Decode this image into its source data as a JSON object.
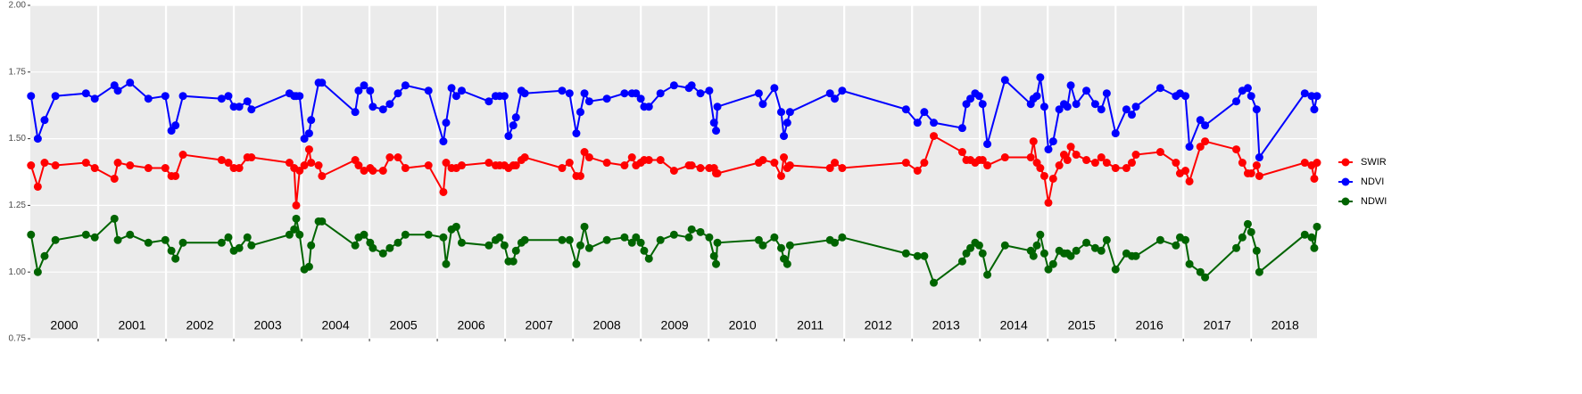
{
  "chart_data": {
    "type": "line",
    "x": [
      2000.01,
      2000.11,
      2000.21,
      2000.37,
      2000.82,
      2000.95,
      2001.24,
      2001.29,
      2001.47,
      2001.74,
      2001.99,
      2002.08,
      2002.14,
      2002.25,
      2002.82,
      2002.92,
      2003.0,
      2003.08,
      2003.2,
      2003.26,
      2003.82,
      2003.89,
      2003.92,
      2003.97,
      2004.04,
      2004.11,
      2004.14,
      2004.25,
      2004.3,
      2004.79,
      2004.84,
      2004.92,
      2005.01,
      2005.05,
      2005.2,
      2005.3,
      2005.42,
      2005.53,
      2005.87,
      2006.09,
      2006.13,
      2006.21,
      2006.28,
      2006.36,
      2006.76,
      2006.86,
      2006.92,
      2006.99,
      2007.05,
      2007.12,
      2007.16,
      2007.24,
      2007.29,
      2007.84,
      2007.95,
      2008.05,
      2008.11,
      2008.17,
      2008.24,
      2008.5,
      2008.76,
      2008.87,
      2008.93,
      2009.0,
      2009.05,
      2009.12,
      2009.29,
      2009.49,
      2009.71,
      2009.75,
      2009.88,
      2010.01,
      2010.08,
      2010.11,
      2010.13,
      2010.74,
      2010.8,
      2010.97,
      2011.07,
      2011.11,
      2011.16,
      2011.2,
      2011.79,
      2011.86,
      2011.97,
      2012.91,
      2013.08,
      2013.18,
      2013.32,
      2013.74,
      2013.8,
      2013.86,
      2013.93,
      2013.99,
      2014.04,
      2014.11,
      2014.37,
      2014.75,
      2014.79,
      2014.84,
      2014.89,
      2014.95,
      2015.01,
      2015.08,
      2015.17,
      2015.24,
      2015.29,
      2015.34,
      2015.42,
      2015.57,
      2015.7,
      2015.79,
      2015.87,
      2016.0,
      2016.16,
      2016.24,
      2016.3,
      2016.66,
      2016.89,
      2016.95,
      2017.03,
      2017.09,
      2017.25,
      2017.32,
      2017.78,
      2017.87,
      2017.95,
      2018.0,
      2018.08,
      2018.12,
      2018.79,
      2018.89,
      2018.93,
      2018.97
    ],
    "series": [
      {
        "name": "SWIR",
        "color": "#ff0000",
        "values": [
          1.4,
          1.32,
          1.41,
          1.4,
          1.41,
          1.39,
          1.35,
          1.41,
          1.4,
          1.39,
          1.39,
          1.36,
          1.36,
          1.44,
          1.42,
          1.41,
          1.39,
          1.39,
          1.43,
          1.43,
          1.41,
          1.39,
          1.25,
          1.38,
          1.4,
          1.46,
          1.41,
          1.4,
          1.36,
          1.42,
          1.4,
          1.38,
          1.39,
          1.38,
          1.38,
          1.43,
          1.43,
          1.39,
          1.4,
          1.3,
          1.41,
          1.39,
          1.39,
          1.4,
          1.41,
          1.4,
          1.4,
          1.4,
          1.39,
          1.4,
          1.4,
          1.42,
          1.43,
          1.39,
          1.41,
          1.36,
          1.36,
          1.45,
          1.43,
          1.41,
          1.4,
          1.43,
          1.4,
          1.41,
          1.42,
          1.42,
          1.42,
          1.38,
          1.4,
          1.4,
          1.39,
          1.39,
          1.39,
          1.37,
          1.37,
          1.41,
          1.42,
          1.41,
          1.36,
          1.43,
          1.39,
          1.4,
          1.39,
          1.41,
          1.39,
          1.41,
          1.38,
          1.41,
          1.51,
          1.45,
          1.42,
          1.42,
          1.41,
          1.42,
          1.42,
          1.4,
          1.43,
          1.43,
          1.49,
          1.41,
          1.39,
          1.36,
          1.26,
          1.35,
          1.4,
          1.44,
          1.42,
          1.47,
          1.44,
          1.42,
          1.41,
          1.43,
          1.41,
          1.39,
          1.39,
          1.41,
          1.44,
          1.45,
          1.41,
          1.37,
          1.38,
          1.34,
          1.47,
          1.49,
          1.46,
          1.41,
          1.37,
          1.37,
          1.4,
          1.36,
          1.41,
          1.4,
          1.35,
          1.41
        ]
      },
      {
        "name": "NDVI",
        "color": "#0000ff",
        "values": [
          1.66,
          1.5,
          1.57,
          1.66,
          1.67,
          1.65,
          1.7,
          1.68,
          1.71,
          1.65,
          1.66,
          1.53,
          1.55,
          1.66,
          1.65,
          1.66,
          1.62,
          1.62,
          1.64,
          1.61,
          1.67,
          1.66,
          1.66,
          1.66,
          1.5,
          1.52,
          1.57,
          1.71,
          1.71,
          1.6,
          1.68,
          1.7,
          1.68,
          1.62,
          1.61,
          1.63,
          1.67,
          1.7,
          1.68,
          1.49,
          1.56,
          1.69,
          1.66,
          1.68,
          1.64,
          1.66,
          1.66,
          1.66,
          1.51,
          1.55,
          1.58,
          1.68,
          1.67,
          1.68,
          1.67,
          1.52,
          1.6,
          1.67,
          1.64,
          1.65,
          1.67,
          1.67,
          1.67,
          1.65,
          1.62,
          1.62,
          1.67,
          1.7,
          1.69,
          1.7,
          1.67,
          1.68,
          1.56,
          1.53,
          1.62,
          1.67,
          1.63,
          1.69,
          1.6,
          1.51,
          1.56,
          1.6,
          1.67,
          1.65,
          1.68,
          1.61,
          1.56,
          1.6,
          1.56,
          1.54,
          1.63,
          1.65,
          1.67,
          1.66,
          1.63,
          1.48,
          1.72,
          1.63,
          1.65,
          1.66,
          1.73,
          1.62,
          1.46,
          1.49,
          1.61,
          1.63,
          1.62,
          1.7,
          1.63,
          1.68,
          1.63,
          1.61,
          1.67,
          1.52,
          1.61,
          1.59,
          1.62,
          1.69,
          1.66,
          1.67,
          1.66,
          1.47,
          1.57,
          1.55,
          1.64,
          1.68,
          1.69,
          1.66,
          1.61,
          1.43,
          1.67,
          1.66,
          1.61,
          1.66
        ]
      },
      {
        "name": "NDWI",
        "color": "#006400",
        "values": [
          1.14,
          1.0,
          1.06,
          1.12,
          1.14,
          1.13,
          1.2,
          1.12,
          1.14,
          1.11,
          1.12,
          1.08,
          1.05,
          1.11,
          1.11,
          1.13,
          1.08,
          1.09,
          1.13,
          1.1,
          1.14,
          1.16,
          1.2,
          1.14,
          1.01,
          1.02,
          1.1,
          1.19,
          1.19,
          1.1,
          1.13,
          1.14,
          1.11,
          1.09,
          1.07,
          1.09,
          1.11,
          1.14,
          1.14,
          1.13,
          1.03,
          1.16,
          1.17,
          1.11,
          1.1,
          1.12,
          1.13,
          1.1,
          1.04,
          1.04,
          1.08,
          1.11,
          1.12,
          1.12,
          1.12,
          1.03,
          1.1,
          1.17,
          1.09,
          1.12,
          1.13,
          1.11,
          1.13,
          1.11,
          1.08,
          1.05,
          1.12,
          1.14,
          1.13,
          1.16,
          1.15,
          1.13,
          1.06,
          1.03,
          1.11,
          1.12,
          1.1,
          1.13,
          1.09,
          1.05,
          1.03,
          1.1,
          1.12,
          1.11,
          1.13,
          1.07,
          1.06,
          1.06,
          0.96,
          1.04,
          1.07,
          1.09,
          1.11,
          1.1,
          1.07,
          0.99,
          1.1,
          1.08,
          1.06,
          1.1,
          1.14,
          1.07,
          1.01,
          1.03,
          1.08,
          1.07,
          1.07,
          1.06,
          1.08,
          1.11,
          1.09,
          1.08,
          1.12,
          1.01,
          1.07,
          1.06,
          1.06,
          1.12,
          1.1,
          1.13,
          1.12,
          1.03,
          1.0,
          0.98,
          1.09,
          1.13,
          1.18,
          1.15,
          1.08,
          1.0,
          1.14,
          1.13,
          1.09,
          1.17
        ]
      }
    ],
    "xlim": [
      2000,
      2018.97
    ],
    "xticks": [
      2001,
      2002,
      2003,
      2004,
      2005,
      2006,
      2007,
      2008,
      2009,
      2010,
      2011,
      2012,
      2013,
      2014,
      2015,
      2016,
      2017,
      2018
    ],
    "x_labels": [
      {
        "value": 2000.5,
        "label": "2000"
      },
      {
        "value": 2001.5,
        "label": "2001"
      },
      {
        "value": 2002.5,
        "label": "2002"
      },
      {
        "value": 2003.5,
        "label": "2003"
      },
      {
        "value": 2004.5,
        "label": "2004"
      },
      {
        "value": 2005.5,
        "label": "2005"
      },
      {
        "value": 2006.5,
        "label": "2006"
      },
      {
        "value": 2007.5,
        "label": "2007"
      },
      {
        "value": 2008.5,
        "label": "2008"
      },
      {
        "value": 2009.5,
        "label": "2009"
      },
      {
        "value": 2010.5,
        "label": "2010"
      },
      {
        "value": 2011.5,
        "label": "2011"
      },
      {
        "value": 2012.5,
        "label": "2012"
      },
      {
        "value": 2013.5,
        "label": "2013"
      },
      {
        "value": 2014.5,
        "label": "2014"
      },
      {
        "value": 2015.5,
        "label": "2015"
      },
      {
        "value": 2016.5,
        "label": "2016"
      },
      {
        "value": 2017.5,
        "label": "2017"
      },
      {
        "value": 2018.5,
        "label": "2018"
      }
    ],
    "ylim": [
      0.75,
      2.0
    ],
    "yticks": [
      {
        "value": 0.75,
        "label": "0.75"
      },
      {
        "value": 1.0,
        "label": "1.00"
      },
      {
        "value": 1.25,
        "label": "1.25"
      },
      {
        "value": 1.5,
        "label": "1.50"
      },
      {
        "value": 1.75,
        "label": "1.75"
      },
      {
        "value": 2.0,
        "label": "2.00"
      }
    ],
    "grid": true,
    "legend": "right"
  }
}
